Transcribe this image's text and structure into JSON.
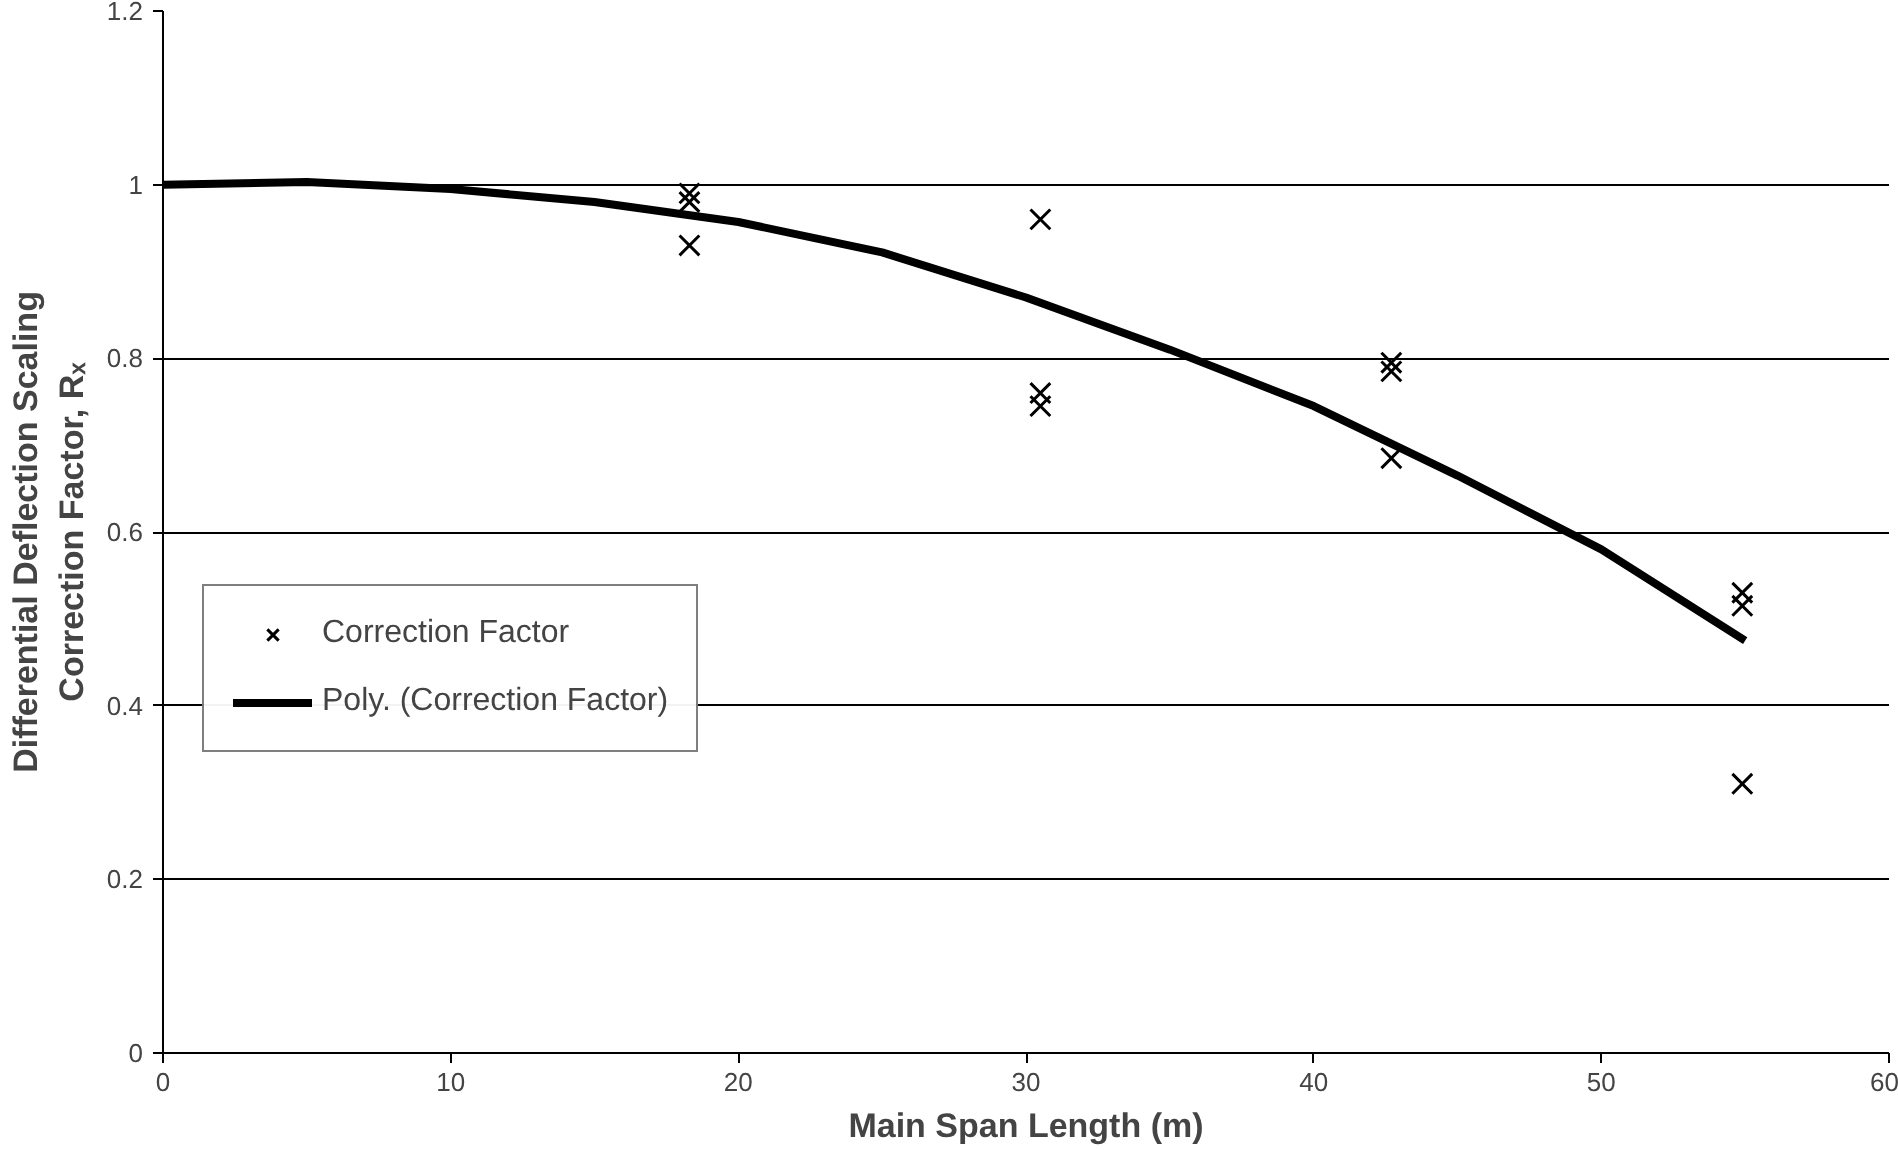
{
  "chart_data": {
    "type": "scatter",
    "xlabel": "Main Span Length (m)",
    "ylabel": "Differential Deflection Scaling\nCorrection Factor, Rₓ",
    "xlim": [
      0,
      60
    ],
    "xticks": [
      0,
      10,
      20,
      30,
      40,
      50,
      60
    ],
    "ylim": [
      0,
      1.2
    ],
    "yticks": [
      0,
      0.2,
      0.4,
      0.6,
      0.8,
      1,
      1.2
    ],
    "grid": "y",
    "legend": "left",
    "series": [
      {
        "name": "Correction Factor",
        "marker": "cross",
        "color": "#000000",
        "x": [
          18.3,
          18.3,
          18.3,
          30.5,
          30.5,
          30.5,
          42.7,
          42.7,
          42.7,
          54.9,
          54.9,
          54.9
        ],
        "values": [
          0.99,
          0.98,
          0.93,
          0.96,
          0.76,
          0.745,
          0.795,
          0.785,
          0.685,
          0.53,
          0.515,
          0.31
        ]
      },
      {
        "name": "Poly. (Correction Factor)",
        "type": "line",
        "line_style": "solid",
        "color": "#000000",
        "x": [
          0,
          5,
          10,
          15,
          20,
          25,
          30,
          35,
          40,
          45,
          50,
          55
        ],
        "values": [
          1.0,
          1.003,
          0.995,
          0.98,
          0.957,
          0.922,
          0.87,
          0.81,
          0.745,
          0.665,
          0.58,
          0.475
        ]
      }
    ]
  }
}
